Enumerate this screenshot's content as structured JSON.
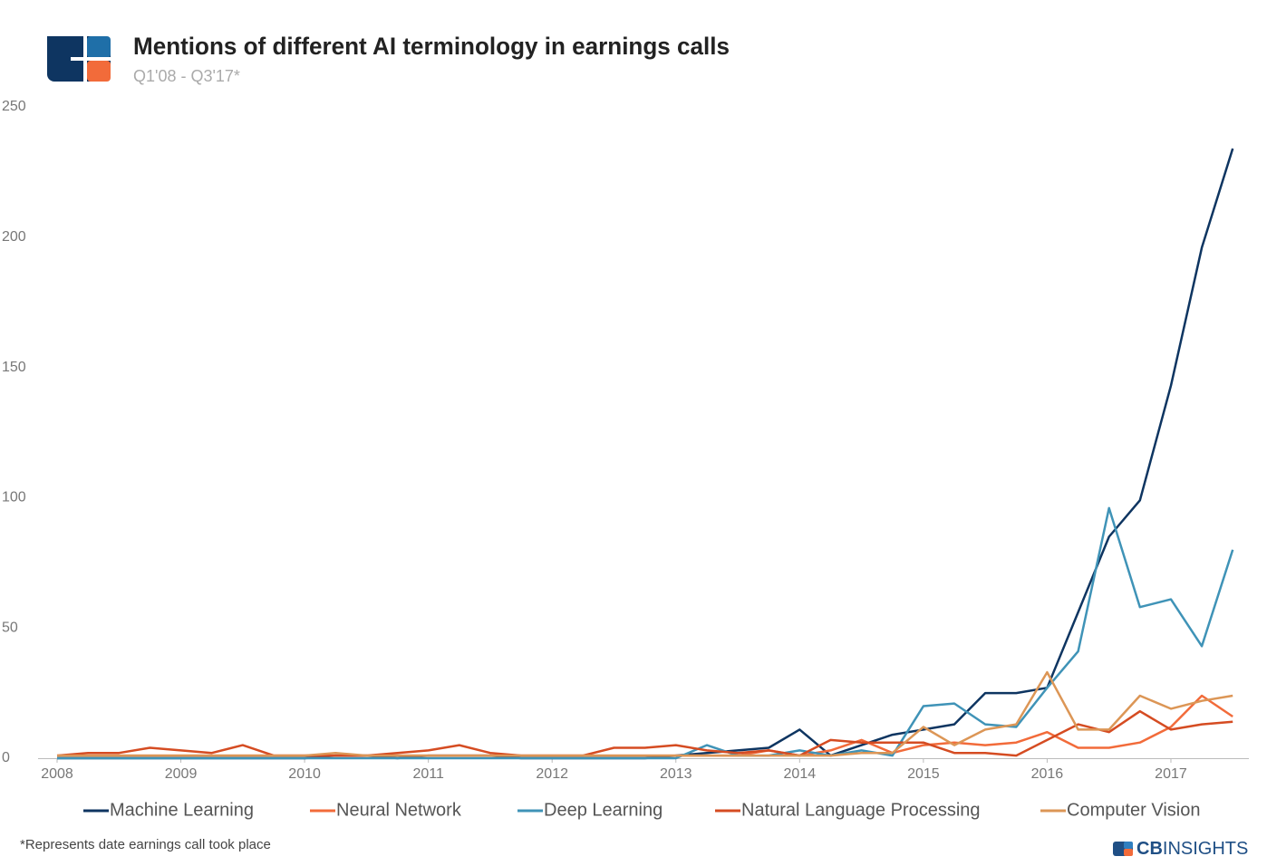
{
  "chart_data": {
    "type": "line",
    "title": "Mentions of different AI terminology in earnings calls",
    "subtitle": "Q1'08 - Q3'17*",
    "footnote": "*Represents  date earnings call took place",
    "brand_bold": "CB",
    "brand_rest": "INSIGHTS",
    "x": [
      2008,
      2008.25,
      2008.5,
      2008.75,
      2009,
      2009.25,
      2009.5,
      2009.75,
      2010,
      2010.25,
      2010.5,
      2010.75,
      2011,
      2011.25,
      2011.5,
      2011.75,
      2012,
      2012.25,
      2012.5,
      2012.75,
      2013,
      2013.25,
      2013.5,
      2013.75,
      2014,
      2014.25,
      2014.5,
      2014.75,
      2015,
      2015.25,
      2015.5,
      2015.75,
      2016,
      2016.25,
      2016.5,
      2016.75,
      2017,
      2017.25,
      2017.5
    ],
    "xlim": [
      2008,
      2017.63
    ],
    "xticks": [
      2008,
      2009,
      2010,
      2011,
      2012,
      2013,
      2014,
      2015,
      2016,
      2017
    ],
    "ylim": [
      0,
      250
    ],
    "yticks": [
      0,
      50,
      100,
      150,
      200,
      250
    ],
    "grid": false,
    "legend": "bottom",
    "series": [
      {
        "name": "Machine Learning",
        "color": "#0e3561",
        "values": [
          0,
          0,
          0,
          0,
          0,
          0,
          0,
          0,
          0,
          1,
          1,
          0,
          1,
          1,
          1,
          0,
          0,
          0,
          0,
          0,
          1,
          2,
          3,
          4,
          11,
          1,
          5,
          9,
          11,
          13,
          25,
          25,
          27,
          56,
          85,
          99,
          143,
          196,
          234
        ]
      },
      {
        "name": "Neural Network",
        "color": "#f26b3a",
        "values": [
          1,
          1,
          1,
          1,
          1,
          1,
          1,
          1,
          1,
          1,
          1,
          1,
          1,
          1,
          1,
          1,
          1,
          1,
          1,
          1,
          1,
          1,
          1,
          3,
          1,
          3,
          7,
          2,
          5,
          6,
          5,
          6,
          10,
          4,
          4,
          6,
          12,
          24,
          16
        ]
      },
      {
        "name": "Deep Learning",
        "color": "#3f93b7",
        "values": [
          0,
          0,
          0,
          0,
          0,
          0,
          0,
          0,
          0,
          0,
          0,
          0,
          0,
          0,
          0,
          0,
          0,
          0,
          0,
          0,
          0,
          5,
          1,
          1,
          3,
          1,
          3,
          1,
          20,
          21,
          13,
          12,
          27,
          41,
          96,
          58,
          61,
          43,
          80
        ]
      },
      {
        "name": "Natural Language Processing",
        "color": "#d54c22",
        "values": [
          1,
          2,
          2,
          4,
          3,
          2,
          5,
          1,
          1,
          1,
          1,
          2,
          3,
          5,
          2,
          1,
          1,
          1,
          4,
          4,
          5,
          3,
          2,
          3,
          1,
          7,
          6,
          6,
          6,
          2,
          2,
          1,
          7,
          13,
          10,
          18,
          11,
          13,
          14
        ]
      },
      {
        "name": "Computer Vision",
        "color": "#dc9656",
        "values": [
          1,
          1,
          1,
          1,
          1,
          1,
          1,
          1,
          1,
          2,
          1,
          1,
          1,
          1,
          1,
          1,
          1,
          1,
          1,
          1,
          1,
          1,
          1,
          1,
          1,
          1,
          2,
          2,
          12,
          5,
          11,
          13,
          33,
          11,
          11,
          24,
          19,
          22,
          24
        ]
      }
    ]
  }
}
